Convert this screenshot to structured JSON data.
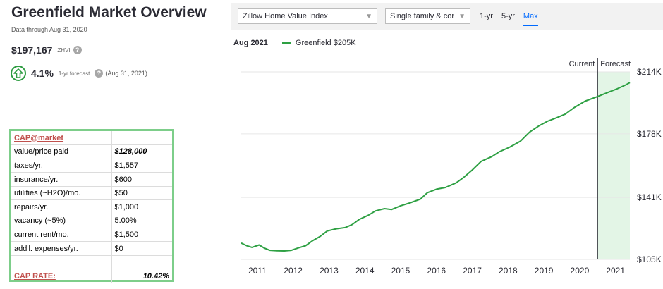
{
  "overview": {
    "title": "Greenfield Market Overview",
    "data_through": "Data through Aug 31, 2020",
    "zhvi_value": "$197,167",
    "zhvi_label": "ZHVI",
    "info_glyph": "?",
    "forecast_value": "4.1%",
    "forecast_label": "1-yr forecast",
    "forecast_date": "(Aug 31, 2021)"
  },
  "controls": {
    "index_select": "Zillow Home Value Index",
    "type_select": "Single family & cor",
    "tabs": [
      {
        "label": "1-yr",
        "active": false
      },
      {
        "label": "5-yr",
        "active": false
      },
      {
        "label": "Max",
        "active": true
      }
    ]
  },
  "legend": {
    "date": "Aug 2021",
    "series_label": "Greenfield $205K",
    "color": "#2ea043"
  },
  "cap_table": {
    "header": "CAP@market",
    "rows": [
      {
        "label": "value/price paid",
        "value": "$128,000"
      },
      {
        "label": "taxes/yr.",
        "value": "$1,557"
      },
      {
        "label": "insurance/yr.",
        "value": "$600"
      },
      {
        "label": "utilities (~H2O)/mo.",
        "value": "$50"
      },
      {
        "label": "repairs/yr.",
        "value": "$1,000"
      },
      {
        "label": "vacancy (~5%)",
        "value": "5.00%"
      },
      {
        "label": "current rent/mo.",
        "value": "$1,500"
      },
      {
        "label": "add'l. expenses/yr.",
        "value": "$0"
      }
    ],
    "cap_rate_label": "CAP RATE:",
    "cap_rate_value": "10.42%"
  },
  "chart_data": {
    "type": "line",
    "series": [
      {
        "name": "Greenfield $205K",
        "color": "#2ea043"
      }
    ],
    "x_ticks": [
      "2011",
      "2012",
      "2013",
      "2014",
      "2015",
      "2016",
      "2017",
      "2018",
      "2019",
      "2020",
      "2021"
    ],
    "y_ticks": [
      "$214K",
      "$178K",
      "$141K",
      "$105K"
    ],
    "y_tick_values": [
      214000,
      178000,
      141000,
      105000
    ],
    "ylim": [
      105000,
      214000
    ],
    "xlim": [
      2010.8,
      2021.65
    ],
    "current_label": "Current",
    "forecast_label": "Forecast",
    "forecast_start": 2020.75,
    "points": [
      [
        2010.8,
        114500
      ],
      [
        2010.95,
        113000
      ],
      [
        2011.1,
        112000
      ],
      [
        2011.3,
        113400
      ],
      [
        2011.45,
        111500
      ],
      [
        2011.6,
        110300
      ],
      [
        2011.8,
        110000
      ],
      [
        2012.0,
        109900
      ],
      [
        2012.2,
        110300
      ],
      [
        2012.4,
        111700
      ],
      [
        2012.6,
        113000
      ],
      [
        2012.8,
        116000
      ],
      [
        2013.0,
        118300
      ],
      [
        2013.2,
        121500
      ],
      [
        2013.45,
        122800
      ],
      [
        2013.7,
        123500
      ],
      [
        2013.9,
        125300
      ],
      [
        2014.1,
        128300
      ],
      [
        2014.35,
        130700
      ],
      [
        2014.55,
        133200
      ],
      [
        2014.8,
        134500
      ],
      [
        2015.0,
        134000
      ],
      [
        2015.25,
        136200
      ],
      [
        2015.5,
        137800
      ],
      [
        2015.8,
        140000
      ],
      [
        2016.0,
        143800
      ],
      [
        2016.25,
        145800
      ],
      [
        2016.5,
        146800
      ],
      [
        2016.8,
        149500
      ],
      [
        2017.0,
        152500
      ],
      [
        2017.25,
        157000
      ],
      [
        2017.5,
        162000
      ],
      [
        2017.8,
        164800
      ],
      [
        2018.0,
        167500
      ],
      [
        2018.3,
        170300
      ],
      [
        2018.6,
        173800
      ],
      [
        2018.85,
        179000
      ],
      [
        2019.1,
        182500
      ],
      [
        2019.35,
        185300
      ],
      [
        2019.6,
        187300
      ],
      [
        2019.85,
        189500
      ],
      [
        2020.1,
        193300
      ],
      [
        2020.4,
        197000
      ],
      [
        2020.75,
        199700
      ],
      [
        2021.0,
        201800
      ],
      [
        2021.3,
        204200
      ],
      [
        2021.55,
        206600
      ],
      [
        2021.65,
        207800
      ]
    ],
    "grid": true,
    "forecast_shade": "#e3f5e6"
  }
}
